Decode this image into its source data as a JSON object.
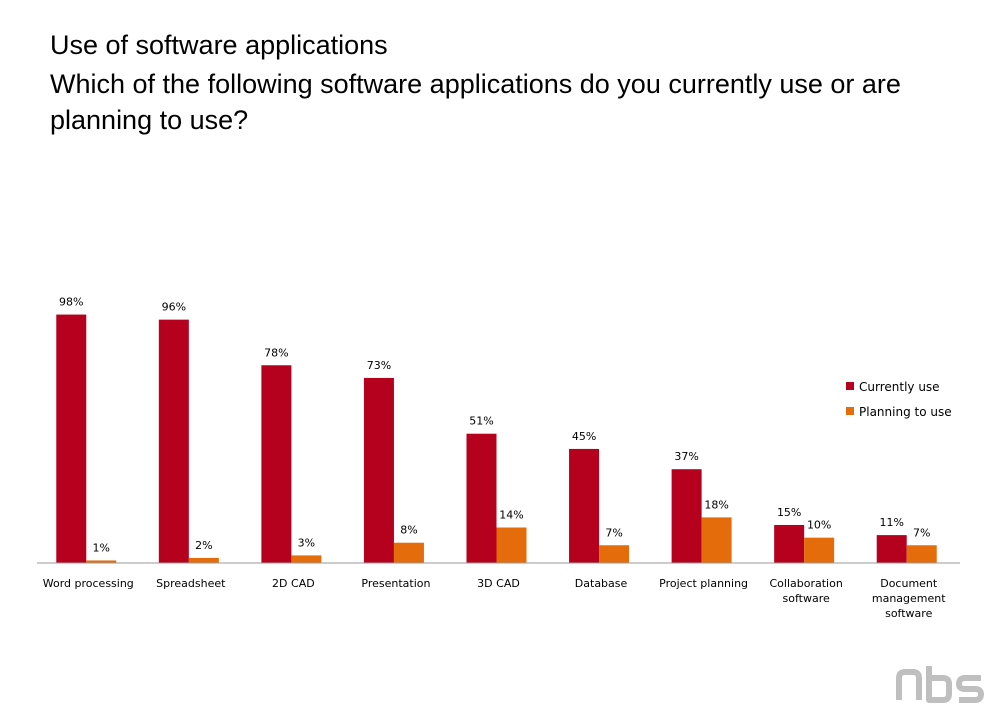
{
  "title": "Use of software applications",
  "subtitle": "Which of the following software applications do you currently use or are planning to use?",
  "logo_text": "nbs",
  "colors": {
    "currently_use": "#b5001e",
    "planning_to_use": "#e46c0a",
    "axis": "#9a9a9a",
    "logo": "#bfbfbf"
  },
  "chart_data": {
    "type": "bar",
    "categories": [
      [
        "Word processing"
      ],
      [
        "Spreadsheet"
      ],
      [
        "2D CAD"
      ],
      [
        "Presentation"
      ],
      [
        "3D CAD"
      ],
      [
        "Database"
      ],
      [
        "Project planning"
      ],
      [
        "Collaboration",
        "software"
      ],
      [
        "Document",
        "management",
        "software"
      ]
    ],
    "series": [
      {
        "name": "Currently use",
        "values": [
          98,
          96,
          78,
          73,
          51,
          45,
          37,
          15,
          11
        ],
        "labels": [
          "98%",
          "96%",
          "78%",
          "73%",
          "51%",
          "45%",
          "37%",
          "15%",
          "11%"
        ]
      },
      {
        "name": "Planning to use",
        "values": [
          1,
          2,
          3,
          8,
          14,
          7,
          18,
          10,
          7
        ],
        "labels": [
          "1%",
          "2%",
          "3%",
          "8%",
          "14%",
          "7%",
          "18%",
          "10%",
          "7%"
        ]
      }
    ],
    "ylim": [
      0,
      100
    ],
    "unit": "%",
    "legend_position": "right",
    "grid": false
  }
}
